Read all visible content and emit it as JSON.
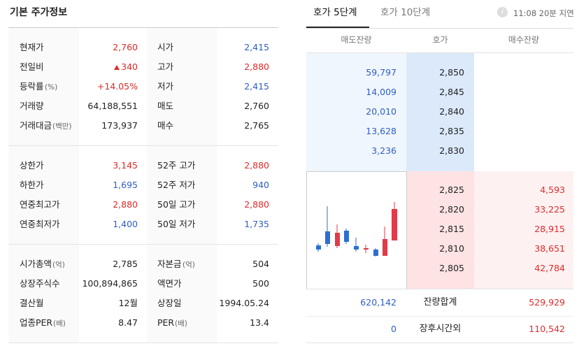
{
  "left": {
    "title": "기본 주가정보",
    "sections": [
      {
        "rows": [
          {
            "label": "현재가",
            "value": "2,760",
            "label2": "시가",
            "value2": "2,415"
          },
          {
            "label": "전일비",
            "value": "340",
            "label2": "고가",
            "value2": "2,880"
          },
          {
            "label": "등락률",
            "unit": "(%)",
            "value": "+14.05%",
            "label2": "저가",
            "value2": "2,415"
          },
          {
            "label": "거래량",
            "value": "64,188,551",
            "label2": "매도",
            "value2": "2,760"
          },
          {
            "label": "거래대금",
            "unit": "(백만)",
            "value": "173,937",
            "label2": "매수",
            "value2": "2,765"
          }
        ]
      },
      {
        "rows": [
          {
            "label": "상한가",
            "value": "3,145",
            "label2": "52주 고가",
            "value2": "2,880"
          },
          {
            "label": "하한가",
            "value": "1,695",
            "label2": "52주 저가",
            "value2": "940"
          },
          {
            "label": "연중최고가",
            "value": "2,880",
            "label2": "50일 고가",
            "value2": "2,880"
          },
          {
            "label": "연중최저가",
            "value": "1,400",
            "label2": "50일 저가",
            "value2": "1,735"
          }
        ]
      },
      {
        "rows": [
          {
            "label": "시가총액",
            "unit": "(억)",
            "value": "2,785",
            "label2": "자본금",
            "unit2": "(억)",
            "value2": "504"
          },
          {
            "label": "상장주식수",
            "value": "100,894,865",
            "label2": "액면가",
            "value2": "500"
          },
          {
            "label": "결산월",
            "value": "12월",
            "label2": "상장일",
            "value2": "1994.05.24"
          },
          {
            "label": "업종PER",
            "unit": "(배)",
            "value": "8.47",
            "label2": "PER",
            "unit2": "(배)",
            "value2": "13.4"
          }
        ]
      }
    ]
  },
  "right": {
    "tabs": [
      "호가 5단계",
      "호가 10단계"
    ],
    "info": "i",
    "delay": "11:08 20분 지연",
    "headers": [
      "매도잔량",
      "호가",
      "매수잔량"
    ],
    "asks": [
      {
        "volume": "59,797",
        "price": "2,850"
      },
      {
        "volume": "14,009",
        "price": "2,845"
      },
      {
        "volume": "20,010",
        "price": "2,840"
      },
      {
        "volume": "13,628",
        "price": "2,835"
      },
      {
        "volume": "3,236",
        "price": "2,830"
      }
    ],
    "bids": [
      {
        "price": "2,825",
        "volume": "4,593"
      },
      {
        "price": "2,820",
        "volume": "33,225"
      },
      {
        "price": "2,815",
        "volume": "28,915"
      },
      {
        "price": "2,810",
        "volume": "38,651"
      },
      {
        "price": "2,805",
        "volume": "42,784"
      }
    ],
    "totals": [
      {
        "sell": "620,142",
        "label": "잔량합계",
        "buy": "529,929"
      },
      {
        "sell": "0",
        "label": "장후시간외",
        "buy": "110,542"
      }
    ]
  }
}
